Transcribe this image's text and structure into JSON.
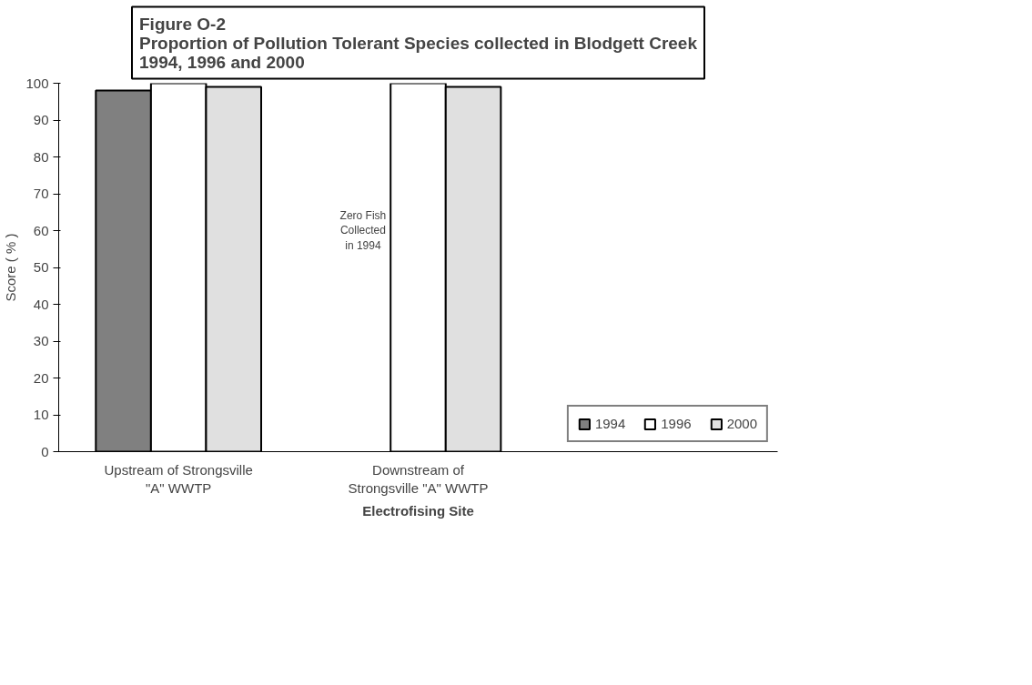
{
  "chart_data": {
    "type": "bar",
    "title": "Figure O-2\nProportion of Pollution Tolerant Species collected in Blodgett Creek\n1994, 1996 and 2000",
    "xlabel": "Electrofising Site",
    "ylabel": "Score ( % )",
    "categories": [
      "Upstream of Strongsville\n\"A\" WWTP",
      "Downstream of\nStrongsville \"A\" WWTP",
      null
    ],
    "series": [
      {
        "name": "1994",
        "color": "#808080",
        "values": [
          98,
          null,
          null
        ]
      },
      {
        "name": "1996",
        "color": "#ffffff",
        "values": [
          100,
          100,
          null
        ]
      },
      {
        "name": "2000",
        "color": "#e0e0e0",
        "values": [
          99,
          99,
          null
        ]
      }
    ],
    "ylim": [
      0,
      100
    ],
    "yticks": [
      0,
      10,
      20,
      30,
      40,
      50,
      60,
      70,
      80,
      90,
      100
    ],
    "grid": false,
    "legend": "bottom right",
    "annotations": [
      "Zero Fish\nCollected\nin 1994"
    ]
  }
}
